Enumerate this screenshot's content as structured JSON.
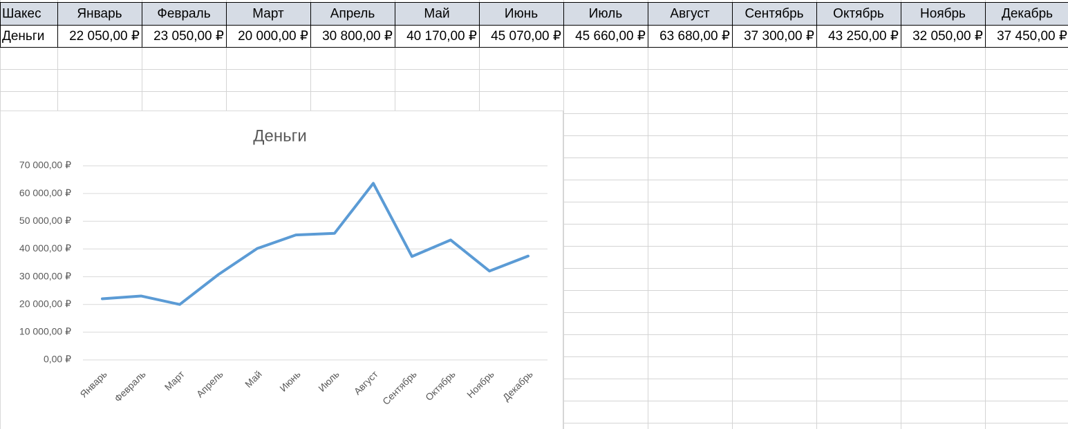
{
  "table": {
    "header": [
      "Шакес",
      "Январь",
      "Февраль",
      "Март",
      "Апрель",
      "Май",
      "Июнь",
      "Июль",
      "Август",
      "Сентябрь",
      "Октябрь",
      "Ноябрь",
      "Декабрь"
    ],
    "rows": [
      [
        "Деньги",
        "22 050,00 ₽",
        "23 050,00 ₽",
        "20 000,00 ₽",
        "30 800,00 ₽",
        "40 170,00 ₽",
        "45 070,00 ₽",
        "45 660,00 ₽",
        "63 680,00 ₽",
        "37 300,00 ₽",
        "43 250,00 ₽",
        "32 050,00 ₽",
        "37 450,00 ₽"
      ]
    ]
  },
  "chart_data": {
    "type": "line",
    "title": "Деньги",
    "categories": [
      "Январь",
      "Февраль",
      "Март",
      "Апрель",
      "Май",
      "Июнь",
      "Июль",
      "Август",
      "Сентябрь",
      "Октябрь",
      "Ноябрь",
      "Декабрь"
    ],
    "values": [
      22050,
      23050,
      20000,
      30800,
      40170,
      45070,
      45660,
      63680,
      37300,
      43250,
      32050,
      37450
    ],
    "color": "#5b9bd5",
    "ylim": [
      0,
      70000
    ],
    "yticks": [
      {
        "value": 0,
        "label": "0,00 ₽"
      },
      {
        "value": 10000,
        "label": "10 000,00 ₽"
      },
      {
        "value": 20000,
        "label": "20 000,00 ₽"
      },
      {
        "value": 30000,
        "label": "30 000,00 ₽"
      },
      {
        "value": 40000,
        "label": "40 000,00 ₽"
      },
      {
        "value": 50000,
        "label": "50 000,00 ₽"
      },
      {
        "value": 60000,
        "label": "60 000,00 ₽"
      },
      {
        "value": 70000,
        "label": "70 000,00 ₽"
      }
    ],
    "grid": true
  }
}
